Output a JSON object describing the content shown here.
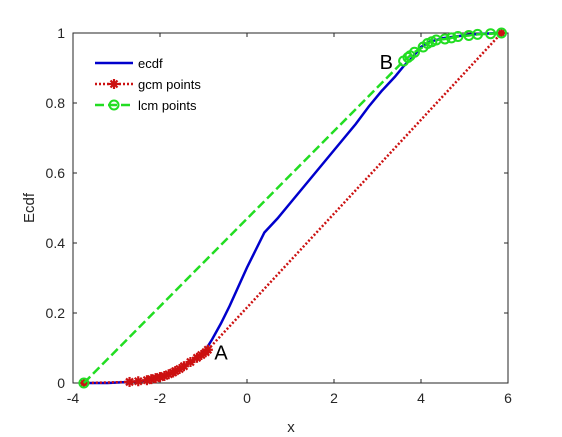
{
  "chart_data": {
    "type": "line",
    "xlabel": "x",
    "ylabel": "Ecdf",
    "xlim": [
      -4,
      6
    ],
    "ylim": [
      0,
      1
    ],
    "xticks": [
      -4,
      -2,
      0,
      2,
      4,
      6
    ],
    "yticks": [
      0,
      0.2,
      0.4,
      0.6,
      0.8,
      1
    ],
    "xtick_labels": [
      "-4",
      "-2",
      "0",
      "2",
      "4",
      "6"
    ],
    "ytick_labels": [
      "0",
      "0.2",
      "0.4",
      "0.6",
      "0.8",
      "1"
    ],
    "grid": false,
    "legend_position": "top-left",
    "annotations": [
      {
        "text": "A",
        "x": -0.75,
        "y": 0.09
      },
      {
        "text": "B",
        "x": 3.05,
        "y": 0.92
      }
    ],
    "series": [
      {
        "name": "ecdf",
        "color": "#0000cc",
        "style": "solid",
        "marker": "none",
        "x": [
          -3.75,
          -3.2,
          -2.7,
          -2.4,
          -2.1,
          -1.9,
          -1.7,
          -1.5,
          -1.3,
          -1.1,
          -0.95,
          -0.8,
          -0.6,
          -0.4,
          -0.2,
          0.0,
          0.2,
          0.4,
          0.7,
          1.0,
          1.3,
          1.6,
          1.9,
          2.2,
          2.5,
          2.8,
          3.1,
          3.4,
          3.6,
          3.8,
          4.0,
          4.2,
          4.5,
          4.8,
          5.1,
          5.4,
          5.85
        ],
        "y": [
          0.0,
          0.0,
          0.003,
          0.006,
          0.012,
          0.02,
          0.03,
          0.045,
          0.06,
          0.078,
          0.095,
          0.125,
          0.17,
          0.22,
          0.275,
          0.33,
          0.38,
          0.43,
          0.47,
          0.515,
          0.56,
          0.605,
          0.65,
          0.695,
          0.74,
          0.79,
          0.835,
          0.875,
          0.905,
          0.93,
          0.96,
          0.975,
          0.985,
          0.99,
          0.995,
          0.998,
          1.0
        ]
      },
      {
        "name": "gcm points",
        "color": "#cc1111",
        "style": "dotted",
        "marker": "asterisk",
        "x": [
          -3.75,
          -2.7,
          -2.5,
          -2.3,
          -2.2,
          -2.1,
          -2.0,
          -1.9,
          -1.8,
          -1.7,
          -1.65,
          -1.55,
          -1.45,
          -1.3,
          -1.15,
          -1.05,
          -0.95,
          -0.9,
          5.85
        ],
        "y": [
          0.0,
          0.003,
          0.005,
          0.008,
          0.011,
          0.014,
          0.017,
          0.02,
          0.025,
          0.03,
          0.034,
          0.04,
          0.048,
          0.06,
          0.072,
          0.08,
          0.088,
          0.095,
          1.0
        ]
      },
      {
        "name": "lcm points",
        "color": "#22dd22",
        "style": "dashed",
        "marker": "circle",
        "x": [
          -3.75,
          3.6,
          3.7,
          3.75,
          3.85,
          4.05,
          4.15,
          4.25,
          4.35,
          4.55,
          4.7,
          4.85,
          5.1,
          5.3,
          5.6,
          5.85
        ],
        "y": [
          0.0,
          0.92,
          0.93,
          0.935,
          0.945,
          0.96,
          0.97,
          0.975,
          0.98,
          0.983,
          0.986,
          0.99,
          0.993,
          0.996,
          0.998,
          1.0
        ]
      }
    ]
  }
}
